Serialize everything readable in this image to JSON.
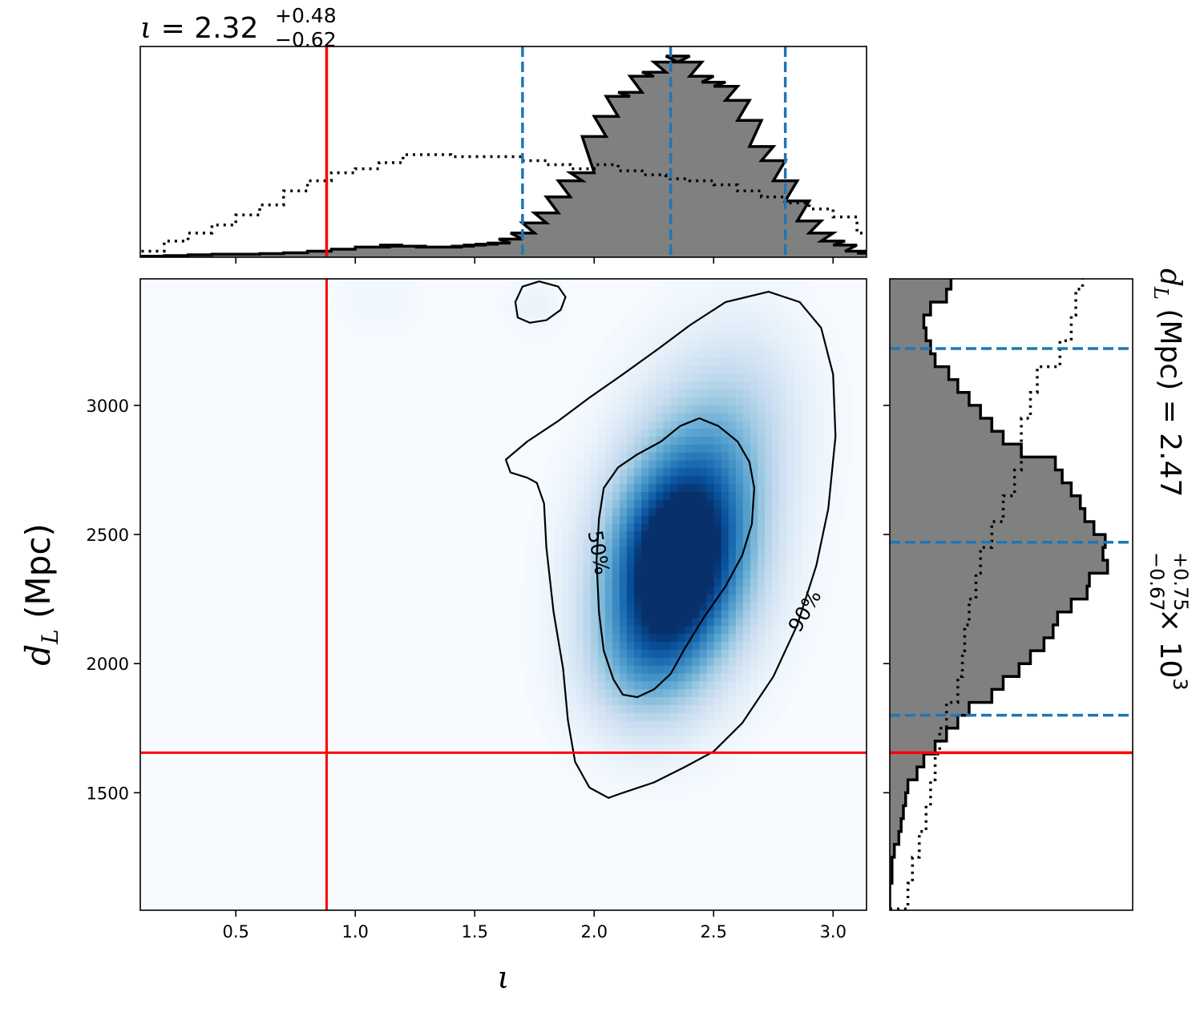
{
  "chart_data": [
    {
      "panel": "top-marginal",
      "type": "histogram",
      "title": {
        "symbol": "ι",
        "equals": " = ",
        "value": "2.32",
        "upper": "+0.48",
        "lower": "−0.62"
      },
      "xlim": [
        0.1,
        3.14
      ],
      "series": [
        {
          "name": "",
          "style": "filled-step",
          "x": [
            0.1,
            0.2,
            0.3,
            0.4,
            0.5,
            0.6,
            0.7,
            0.8,
            0.9,
            1.0,
            1.05,
            1.1,
            1.15,
            1.2,
            1.25,
            1.3,
            1.35,
            1.4,
            1.45,
            1.5,
            1.55,
            1.6,
            1.65,
            1.7,
            1.75,
            1.8,
            1.85,
            1.9,
            1.95,
            2.0,
            2.05,
            2.1,
            2.15,
            2.2,
            2.25,
            2.3,
            2.35,
            2.4,
            2.45,
            2.5,
            2.55,
            2.6,
            2.65,
            2.7,
            2.75,
            2.8,
            2.85,
            2.9,
            2.95,
            3.0,
            3.05,
            3.1
          ],
          "y": [
            0.005,
            0.008,
            0.012,
            0.015,
            0.015,
            0.018,
            0.022,
            0.03,
            0.04,
            0.05,
            0.05,
            0.06,
            0.055,
            0.055,
            0.05,
            0.05,
            0.05,
            0.055,
            0.06,
            0.065,
            0.07,
            0.09,
            0.12,
            0.17,
            0.22,
            0.3,
            0.38,
            0.42,
            0.6,
            0.7,
            0.8,
            0.82,
            0.9,
            0.92,
            0.97,
            1.0,
            0.97,
            0.9,
            0.87,
            0.85,
            0.78,
            0.68,
            0.55,
            0.48,
            0.38,
            0.28,
            0.18,
            0.12,
            0.08,
            0.06,
            0.03,
            0.02
          ]
        },
        {
          "name": "",
          "style": "dotted-step",
          "x": [
            0.1,
            0.2,
            0.3,
            0.4,
            0.5,
            0.6,
            0.7,
            0.8,
            0.9,
            1.0,
            1.1,
            1.2,
            1.3,
            1.4,
            1.5,
            1.6,
            1.7,
            1.8,
            1.9,
            2.0,
            2.1,
            2.2,
            2.3,
            2.4,
            2.5,
            2.6,
            2.7,
            2.8,
            2.9,
            3.0,
            3.1
          ],
          "y": [
            0.03,
            0.08,
            0.12,
            0.16,
            0.21,
            0.26,
            0.33,
            0.38,
            0.42,
            0.44,
            0.47,
            0.51,
            0.51,
            0.5,
            0.5,
            0.5,
            0.48,
            0.46,
            0.44,
            0.46,
            0.43,
            0.41,
            0.39,
            0.38,
            0.36,
            0.33,
            0.3,
            0.27,
            0.24,
            0.2,
            0.12
          ]
        }
      ],
      "vlines": [
        {
          "x": 0.88,
          "color": "#ff0000",
          "style": "solid"
        },
        {
          "x": 1.7,
          "color": "#1f77b4",
          "style": "dashed"
        },
        {
          "x": 2.32,
          "color": "#1f77b4",
          "style": "dashed"
        },
        {
          "x": 2.8,
          "color": "#1f77b4",
          "style": "dashed"
        }
      ]
    },
    {
      "panel": "joint",
      "type": "heatmap",
      "xlabel": "ι",
      "ylabel": {
        "main": "d",
        "sub": "L",
        "unit": " (Mpc)"
      },
      "xlim": [
        0.1,
        3.14
      ],
      "ylim": [
        1045,
        3490
      ],
      "xticks": [
        "0.5",
        "1.0",
        "1.5",
        "2.0",
        "2.5",
        "3.0"
      ],
      "xtick_values": [
        0.5,
        1.0,
        1.5,
        2.0,
        2.5,
        3.0
      ],
      "yticks": [
        "1500",
        "2000",
        "2500",
        "3000"
      ],
      "ytick_values": [
        1500,
        2000,
        2500,
        3000
      ],
      "colormap": [
        "#f7fbff",
        "#deebf7",
        "#c6dbef",
        "#9ecae1",
        "#6baed6",
        "#4292c6",
        "#2171b5",
        "#08519c",
        "#08306b"
      ],
      "density_peaks": [
        {
          "x": 2.32,
          "y": 2350,
          "sx": 0.2,
          "sy": 260,
          "weight": 1.0
        },
        {
          "x": 2.45,
          "y": 2650,
          "sx": 0.2,
          "sy": 300,
          "weight": 0.55
        },
        {
          "x": 2.2,
          "y": 2000,
          "sx": 0.18,
          "sy": 200,
          "weight": 0.35
        },
        {
          "x": 2.65,
          "y": 3000,
          "sx": 0.18,
          "sy": 250,
          "weight": 0.15
        },
        {
          "x": 1.75,
          "y": 3380,
          "sx": 0.08,
          "sy": 70,
          "weight": 0.06
        },
        {
          "x": 1.1,
          "y": 3400,
          "sx": 0.12,
          "sy": 80,
          "weight": 0.04
        }
      ],
      "contours": [
        {
          "label": "50%",
          "x": [
            2.44,
            2.52,
            2.6,
            2.65,
            2.67,
            2.66,
            2.62,
            2.55,
            2.46,
            2.38,
            2.32,
            2.25,
            2.18,
            2.12,
            2.08,
            2.04,
            2.02,
            2.01,
            2.02,
            2.04,
            2.1,
            2.18,
            2.28,
            2.36,
            2.44
          ],
          "y": [
            2950,
            2920,
            2860,
            2780,
            2680,
            2540,
            2420,
            2300,
            2180,
            2060,
            1960,
            1900,
            1870,
            1880,
            1940,
            2050,
            2200,
            2400,
            2560,
            2680,
            2760,
            2810,
            2860,
            2920,
            2950
          ]
        },
        {
          "label": "90%",
          "x": [
            2.73,
            2.86,
            2.95,
            3.0,
            3.01,
            2.98,
            2.93,
            2.85,
            2.75,
            2.62,
            2.5,
            2.38,
            2.25,
            2.12,
            2.06,
            1.98,
            1.92,
            1.89,
            1.87,
            1.83,
            1.8,
            1.79,
            1.76,
            1.72,
            1.65,
            1.63,
            1.72,
            1.85,
            1.98,
            2.12,
            2.27,
            2.4,
            2.55,
            2.73
          ],
          "y": [
            3440,
            3400,
            3300,
            3120,
            2880,
            2600,
            2380,
            2150,
            1950,
            1770,
            1660,
            1600,
            1540,
            1500,
            1480,
            1520,
            1620,
            1780,
            1980,
            2200,
            2450,
            2620,
            2700,
            2720,
            2740,
            2790,
            2860,
            2940,
            3030,
            3120,
            3220,
            3310,
            3400,
            3440
          ]
        },
        {
          "label": "",
          "x": [
            1.77,
            1.85,
            1.88,
            1.86,
            1.8,
            1.73,
            1.68,
            1.67,
            1.7,
            1.77
          ],
          "y": [
            3480,
            3460,
            3420,
            3370,
            3330,
            3320,
            3340,
            3400,
            3460,
            3480
          ]
        }
      ],
      "contour_labels": [
        {
          "text": "50%",
          "x": 2.02,
          "y": 2430,
          "angle": 80
        },
        {
          "text": "90%",
          "x": 2.88,
          "y": 2205,
          "angle": -60
        }
      ],
      "vlines": [
        {
          "x": 0.88,
          "color": "#ff0000"
        }
      ],
      "hlines": [
        {
          "y": 1655,
          "color": "#ff0000"
        }
      ]
    },
    {
      "panel": "right-marginal",
      "type": "histogram",
      "orientation": "horizontal",
      "title": {
        "prefix_main": "d",
        "prefix_sub": "L",
        "unit": " (Mpc) = ",
        "value": "2.47",
        "upper": "+0.75",
        "lower": "−0.67",
        "scale": " × 10",
        "exponent": "3"
      },
      "ylim": [
        1045,
        3490
      ],
      "series": [
        {
          "name": "",
          "style": "filled-step",
          "y": [
            1050,
            1100,
            1150,
            1200,
            1250,
            1300,
            1350,
            1400,
            1450,
            1500,
            1550,
            1600,
            1650,
            1700,
            1750,
            1800,
            1850,
            1900,
            1950,
            2000,
            2050,
            2100,
            2150,
            2200,
            2250,
            2300,
            2350,
            2400,
            2450,
            2500,
            2550,
            2600,
            2650,
            2700,
            2750,
            2800,
            2850,
            2900,
            2950,
            3000,
            3050,
            3100,
            3150,
            3200,
            3250,
            3300,
            3350,
            3400,
            3450
          ],
          "x": [
            0.0,
            0.0,
            0.01,
            0.01,
            0.02,
            0.04,
            0.05,
            0.06,
            0.07,
            0.08,
            0.12,
            0.15,
            0.2,
            0.25,
            0.3,
            0.35,
            0.45,
            0.5,
            0.57,
            0.62,
            0.68,
            0.72,
            0.74,
            0.8,
            0.87,
            0.88,
            0.96,
            0.94,
            0.95,
            0.9,
            0.86,
            0.84,
            0.8,
            0.76,
            0.73,
            0.58,
            0.5,
            0.45,
            0.4,
            0.35,
            0.3,
            0.26,
            0.2,
            0.18,
            0.16,
            0.15,
            0.18,
            0.25,
            0.27
          ]
        },
        {
          "name": "",
          "style": "dotted-step",
          "y": [
            1050,
            1150,
            1250,
            1350,
            1450,
            1550,
            1650,
            1750,
            1850,
            1950,
            2050,
            2150,
            2250,
            2350,
            2450,
            2550,
            2650,
            2750,
            2850,
            2950,
            3050,
            3150,
            3250,
            3350,
            3450
          ],
          "x": [
            0.08,
            0.1,
            0.13,
            0.16,
            0.18,
            0.2,
            0.22,
            0.25,
            0.3,
            0.32,
            0.33,
            0.35,
            0.38,
            0.4,
            0.45,
            0.5,
            0.55,
            0.58,
            0.58,
            0.62,
            0.65,
            0.75,
            0.8,
            0.82,
            0.85
          ]
        }
      ],
      "hlines": [
        {
          "y": 1655,
          "color": "#ff0000",
          "style": "solid"
        },
        {
          "y": 1800,
          "color": "#1f77b4",
          "style": "dashed"
        },
        {
          "y": 2470,
          "color": "#1f77b4",
          "style": "dashed"
        },
        {
          "y": 3220,
          "color": "#1f77b4",
          "style": "dashed"
        }
      ]
    }
  ]
}
